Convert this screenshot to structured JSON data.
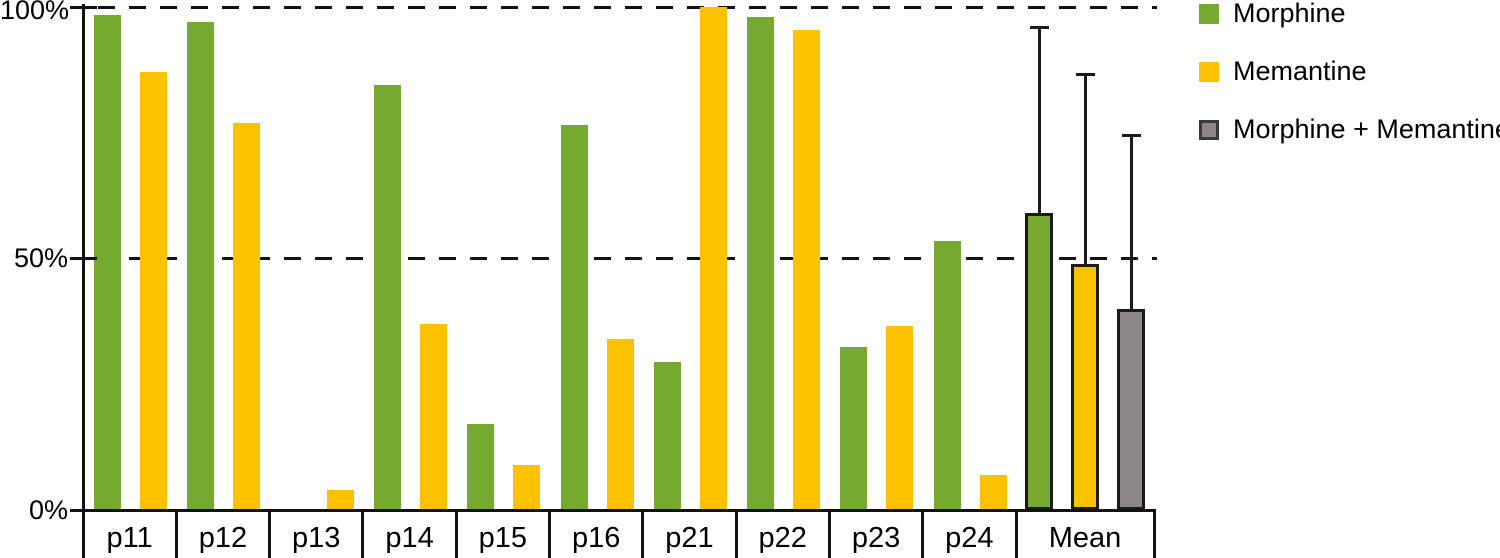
{
  "chart_data": {
    "type": "bar",
    "title": "",
    "xlabel": "",
    "ylabel": "",
    "categories": [
      "p11",
      "p12",
      "p13",
      "p14",
      "p15",
      "p16",
      "p21",
      "p22",
      "p23",
      "p24",
      "Mean"
    ],
    "series": [
      {
        "name": "Morphine",
        "color": "#76A92F",
        "values": [
          98.5,
          97,
          null,
          84.5,
          17,
          76.5,
          29.5,
          98,
          32.5,
          53.5,
          59
        ]
      },
      {
        "name": "Memantine",
        "color": "#FCC200",
        "values": [
          87,
          77,
          4,
          37,
          9,
          34,
          100,
          95.5,
          36.5,
          7,
          49
        ]
      },
      {
        "name": "Morphine + Memantine",
        "color": "#8B8789",
        "values": [
          null,
          null,
          null,
          null,
          null,
          null,
          null,
          null,
          null,
          null,
          40
        ]
      }
    ],
    "error_bars": {
      "category": "Mean",
      "direction": "upper",
      "upper_values": [
        96,
        86.5,
        74.5
      ]
    },
    "ylim": [
      0,
      100
    ],
    "ytick_labels": [
      "0%",
      "50%",
      "100%"
    ],
    "gridlines_at": [
      50,
      100
    ],
    "grid_style": "dashed",
    "legend_position": "right"
  },
  "legend": {
    "items": [
      {
        "label": "Morphine",
        "color": "#76A92F"
      },
      {
        "label": "Memantine",
        "color": "#FCC200"
      },
      {
        "label": "Morphine + Memantine",
        "color": "#8B8789",
        "border": "#3A3A3A"
      }
    ]
  },
  "colors": {
    "morphine_green": "#76A92F",
    "memantine_yellow": "#FCC200",
    "combo_gray_fill": "#8B8789",
    "outline_black": "#1B1B1B",
    "axis_and_text": "#000000",
    "background": "#FFFFFF"
  }
}
